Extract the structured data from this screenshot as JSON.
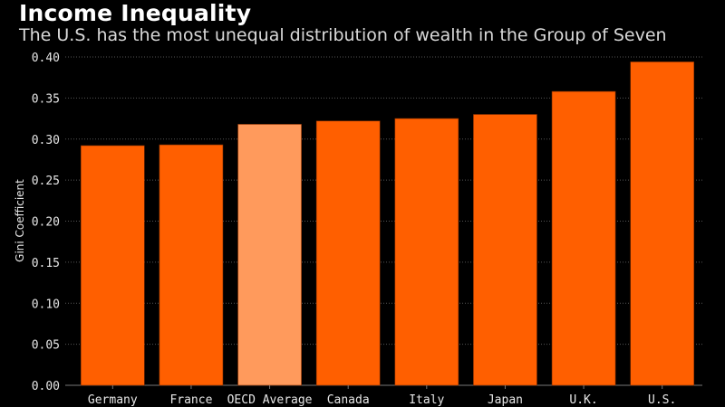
{
  "header": {
    "title": "Income Inequality",
    "subtitle": "The U.S. has the most unequal distribution of wealth in the Group of Seven"
  },
  "chart_data": {
    "type": "bar",
    "title": "Income Inequality",
    "subtitle": "The U.S. has the most unequal distribution of wealth in the Group of Seven",
    "xlabel": "",
    "ylabel": "Gini Coefficient",
    "categories": [
      "Germany",
      "France",
      "OECD Average",
      "Canada",
      "Italy",
      "Japan",
      "U.K.",
      "U.S."
    ],
    "values": [
      0.292,
      0.293,
      0.318,
      0.322,
      0.325,
      0.33,
      0.358,
      0.394
    ],
    "highlight": [
      "OECD Average"
    ],
    "ylim": [
      0,
      0.4
    ],
    "yticks": [
      "0.00",
      "0.05",
      "0.10",
      "0.15",
      "0.20",
      "0.25",
      "0.30",
      "0.35",
      "0.40"
    ],
    "grid": true,
    "colors": {
      "bar": "#ff5f00",
      "highlight": "#ff9a5c",
      "background": "#000000",
      "grid": "#555555"
    }
  }
}
